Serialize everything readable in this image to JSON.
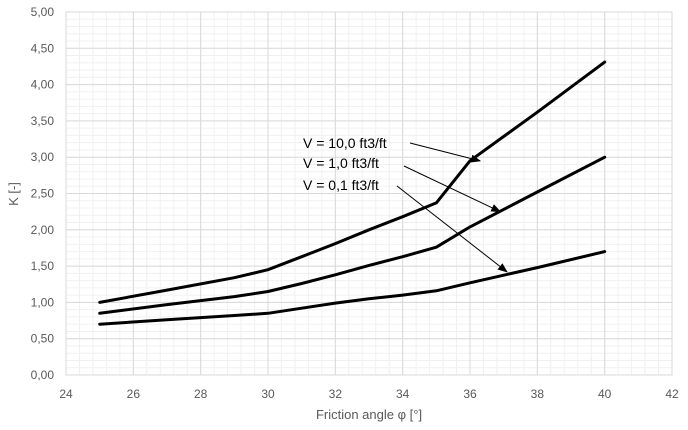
{
  "chart_data": {
    "type": "line",
    "title": "",
    "xlabel": "Friction angle φ [°]",
    "ylabel": "K [-]",
    "xlim": [
      24,
      42
    ],
    "ylim": [
      0,
      5
    ],
    "x_ticks": [
      24,
      26,
      28,
      30,
      32,
      34,
      36,
      38,
      40,
      42
    ],
    "y_ticks": [
      0,
      0.5,
      1,
      1.5,
      2,
      2.5,
      3,
      3.5,
      4,
      4.5,
      5
    ],
    "x_tick_labels": [
      "24",
      "26",
      "28",
      "30",
      "32",
      "34",
      "36",
      "38",
      "40",
      "42"
    ],
    "y_tick_labels": [
      "0,00",
      "0,50",
      "1,00",
      "1,50",
      "2,00",
      "2,50",
      "3,00",
      "3,50",
      "4,00",
      "4,50",
      "5,00"
    ],
    "grid": true,
    "minor_grid": true,
    "legend": "none",
    "line_color": "#000000",
    "grid_color": "#d9d9d9",
    "minor_grid_color": "#f0f0f0",
    "series": [
      {
        "key": "v10",
        "x": [
          25,
          27,
          29,
          30,
          31,
          32,
          33,
          34,
          35,
          36,
          38,
          40
        ],
        "y": [
          1.0,
          1.17,
          1.34,
          1.45,
          1.63,
          1.81,
          2.0,
          2.18,
          2.37,
          2.95,
          3.62,
          4.31
        ]
      },
      {
        "key": "v1",
        "x": [
          25,
          27,
          29,
          30,
          31,
          32,
          33,
          34,
          35,
          36,
          38,
          40
        ],
        "y": [
          0.85,
          0.97,
          1.08,
          1.15,
          1.26,
          1.38,
          1.51,
          1.63,
          1.76,
          2.04,
          2.52,
          3.0
        ]
      },
      {
        "key": "v01",
        "x": [
          25,
          27,
          29,
          30,
          31,
          32,
          33,
          34,
          35,
          36,
          38,
          40
        ],
        "y": [
          0.7,
          0.76,
          0.82,
          0.85,
          0.92,
          0.99,
          1.05,
          1.1,
          1.16,
          1.27,
          1.48,
          1.7
        ]
      }
    ],
    "annotations": [
      {
        "text": "V = 10,0 ft3/ft",
        "arrow_to": [
          36.3,
          2.95
        ]
      },
      {
        "text": "V = 1,0 ft3/ft",
        "arrow_to": [
          36.9,
          2.25
        ]
      },
      {
        "text": "V = 0,1 ft3/ft",
        "arrow_to": [
          37.1,
          1.42
        ]
      }
    ]
  }
}
